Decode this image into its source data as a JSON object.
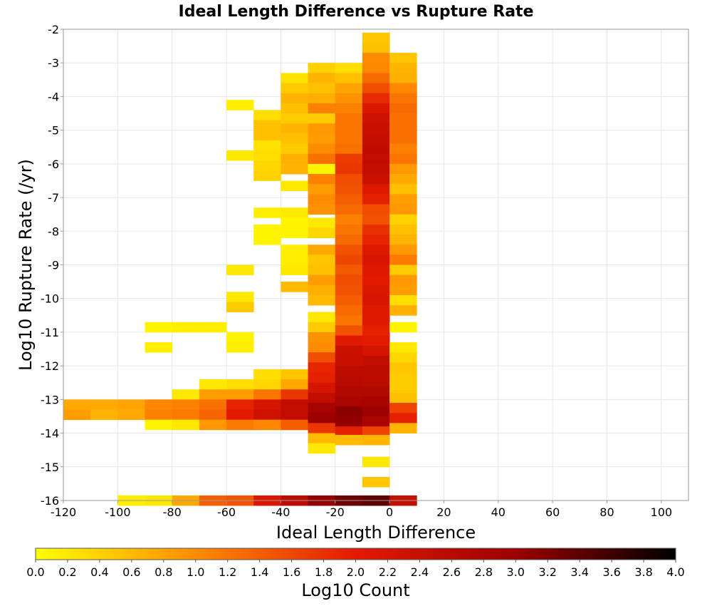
{
  "chart_data": {
    "type": "heatmap",
    "title": "Ideal Length Difference vs Rupture Rate",
    "xlabel": "Ideal Length Difference",
    "ylabel": "Log10 Rupture Rate (/yr)",
    "xlim": [
      -120,
      110
    ],
    "ylim": [
      -16,
      -2
    ],
    "x_ticks": [
      "-120",
      "-100",
      "-80",
      "-60",
      "-40",
      "-20",
      "0",
      "20",
      "40",
      "60",
      "80",
      "100"
    ],
    "y_ticks": [
      "-2",
      "-3",
      "-4",
      "-5",
      "-6",
      "-7",
      "-8",
      "-9",
      "-10",
      "-11",
      "-12",
      "-13",
      "-14",
      "-15",
      "-16"
    ],
    "grid": true,
    "bin_width_x": 10,
    "bin_height_y": 0.3,
    "colorbar": {
      "label": "Log10 Count",
      "range": [
        0,
        4
      ],
      "ticks": [
        "0.0",
        "0.2",
        "0.4",
        "0.6",
        "0.8",
        "1.0",
        "1.2",
        "1.4",
        "1.6",
        "1.8",
        "2.0",
        "2.2",
        "2.4",
        "2.6",
        "2.8",
        "3.0",
        "3.2",
        "3.4",
        "3.6",
        "3.8",
        "4.0"
      ],
      "colors": [
        "#ffff00",
        "#ff8c00",
        "#e31a00",
        "#9c0000",
        "#000000"
      ],
      "placement": "bottom"
    },
    "bins_by_column": [
      {
        "x": -120,
        "cells": [
          [
            -13.15,
            0.75
          ],
          [
            -13.45,
            0.85
          ]
        ]
      },
      {
        "x": -110,
        "cells": [
          [
            -13.15,
            0.75
          ],
          [
            -13.45,
            0.65
          ]
        ]
      },
      {
        "x": -100,
        "cells": [
          [
            -13.15,
            0.8
          ],
          [
            -13.45,
            0.75
          ],
          [
            -16.0,
            0.15
          ]
        ]
      },
      {
        "x": -90,
        "cells": [
          [
            -10.85,
            0.1
          ],
          [
            -11.45,
            0.15
          ],
          [
            -13.15,
            1.05
          ],
          [
            -13.45,
            1.1
          ],
          [
            -13.75,
            0.1
          ],
          [
            -16.0,
            0.2
          ]
        ]
      },
      {
        "x": -80,
        "cells": [
          [
            -10.85,
            0.15
          ],
          [
            -12.85,
            0.2
          ],
          [
            -13.15,
            1.1
          ],
          [
            -13.45,
            1.15
          ],
          [
            -13.75,
            0.2
          ],
          [
            -16.0,
            0.75
          ]
        ]
      },
      {
        "x": -70,
        "cells": [
          [
            -10.85,
            0.15
          ],
          [
            -12.55,
            0.2
          ],
          [
            -12.85,
            0.85
          ],
          [
            -13.15,
            1.25
          ],
          [
            -13.45,
            1.35
          ],
          [
            -13.75,
            0.9
          ],
          [
            -16.0,
            1.4
          ]
        ]
      },
      {
        "x": -60,
        "cells": [
          [
            -4.25,
            0.15
          ],
          [
            -5.75,
            0.2
          ],
          [
            -9.15,
            0.2
          ],
          [
            -9.95,
            0.2
          ],
          [
            -10.25,
            0.45
          ],
          [
            -11.15,
            0.1
          ],
          [
            -11.45,
            0.15
          ],
          [
            -12.55,
            0.3
          ],
          [
            -12.85,
            0.85
          ],
          [
            -13.15,
            1.9
          ],
          [
            -13.45,
            2.0
          ],
          [
            -13.75,
            1.15
          ],
          [
            -16.0,
            1.5
          ]
        ]
      },
      {
        "x": -50,
        "cells": [
          [
            -4.55,
            0.3
          ],
          [
            -4.85,
            0.55
          ],
          [
            -5.15,
            0.55
          ],
          [
            -5.45,
            0.25
          ],
          [
            -5.75,
            0.3
          ],
          [
            -6.05,
            0.35
          ],
          [
            -6.35,
            0.4
          ],
          [
            -7.45,
            0.15
          ],
          [
            -7.95,
            0.1
          ],
          [
            -8.25,
            0.1
          ],
          [
            -12.25,
            0.3
          ],
          [
            -12.55,
            0.35
          ],
          [
            -12.85,
            1.2
          ],
          [
            -13.15,
            2.2
          ],
          [
            -13.45,
            2.3
          ],
          [
            -13.75,
            1.05
          ],
          [
            -16.0,
            2.1
          ]
        ]
      },
      {
        "x": -40,
        "cells": [
          [
            -3.45,
            0.25
          ],
          [
            -3.75,
            0.45
          ],
          [
            -4.05,
            0.65
          ],
          [
            -4.35,
            0.55
          ],
          [
            -4.65,
            0.45
          ],
          [
            -4.95,
            0.65
          ],
          [
            -5.25,
            0.55
          ],
          [
            -5.55,
            0.45
          ],
          [
            -5.85,
            0.7
          ],
          [
            -6.15,
            0.65
          ],
          [
            -6.65,
            0.2
          ],
          [
            -7.45,
            0.2
          ],
          [
            -7.75,
            0.1
          ],
          [
            -8.05,
            0.1
          ],
          [
            -8.55,
            0.15
          ],
          [
            -8.85,
            0.15
          ],
          [
            -9.15,
            0.2
          ],
          [
            -9.65,
            0.6
          ],
          [
            -12.25,
            0.5
          ],
          [
            -12.55,
            0.75
          ],
          [
            -12.85,
            1.75
          ],
          [
            -13.15,
            2.5
          ],
          [
            -13.45,
            2.5
          ],
          [
            -13.75,
            1.4
          ],
          [
            -16.0,
            2.55
          ]
        ]
      },
      {
        "x": -30,
        "cells": [
          [
            -3.15,
            0.4
          ],
          [
            -3.45,
            0.65
          ],
          [
            -3.75,
            0.55
          ],
          [
            -4.05,
            0.7
          ],
          [
            -4.35,
            1.1
          ],
          [
            -4.65,
            0.45
          ],
          [
            -4.95,
            0.9
          ],
          [
            -5.25,
            0.85
          ],
          [
            -5.55,
            1.0
          ],
          [
            -5.85,
            1.25
          ],
          [
            -6.15,
            0.1
          ],
          [
            -6.45,
            1.1
          ],
          [
            -6.75,
            0.85
          ],
          [
            -7.05,
            1.0
          ],
          [
            -7.35,
            0.95
          ],
          [
            -7.75,
            0.2
          ],
          [
            -8.05,
            0.35
          ],
          [
            -8.55,
            0.75
          ],
          [
            -8.85,
            0.5
          ],
          [
            -9.15,
            0.55
          ],
          [
            -9.45,
            0.85
          ],
          [
            -9.75,
            0.7
          ],
          [
            -10.05,
            0.6
          ],
          [
            -10.55,
            0.2
          ],
          [
            -10.85,
            0.45
          ],
          [
            -11.15,
            0.95
          ],
          [
            -11.45,
            1.0
          ],
          [
            -11.75,
            1.55
          ],
          [
            -12.05,
            1.9
          ],
          [
            -12.35,
            1.95
          ],
          [
            -12.65,
            2.2
          ],
          [
            -12.95,
            2.5
          ],
          [
            -13.25,
            2.85
          ],
          [
            -13.55,
            3.0
          ],
          [
            -13.85,
            1.75
          ],
          [
            -14.15,
            0.6
          ],
          [
            -14.45,
            0.2
          ],
          [
            -16.0,
            3.05
          ]
        ]
      },
      {
        "x": -20,
        "cells": [
          [
            -3.15,
            0.3
          ],
          [
            -3.45,
            0.55
          ],
          [
            -3.75,
            0.8
          ],
          [
            -4.05,
            0.95
          ],
          [
            -4.35,
            1.1
          ],
          [
            -4.65,
            1.2
          ],
          [
            -4.95,
            1.2
          ],
          [
            -5.25,
            1.2
          ],
          [
            -5.55,
            1.25
          ],
          [
            -5.85,
            1.7
          ],
          [
            -6.15,
            1.75
          ],
          [
            -6.45,
            1.55
          ],
          [
            -6.75,
            1.5
          ],
          [
            -7.05,
            1.4
          ],
          [
            -7.35,
            1.3
          ],
          [
            -7.65,
            1.1
          ],
          [
            -7.95,
            1.2
          ],
          [
            -8.25,
            1.3
          ],
          [
            -8.55,
            1.5
          ],
          [
            -8.85,
            1.6
          ],
          [
            -9.15,
            1.45
          ],
          [
            -9.45,
            1.55
          ],
          [
            -9.75,
            1.5
          ],
          [
            -10.05,
            1.4
          ],
          [
            -10.35,
            1.3
          ],
          [
            -10.65,
            1.2
          ],
          [
            -10.95,
            1.5
          ],
          [
            -11.25,
            2.05
          ],
          [
            -11.55,
            2.35
          ],
          [
            -11.85,
            2.4
          ],
          [
            -12.15,
            2.55
          ],
          [
            -12.45,
            2.6
          ],
          [
            -12.75,
            2.7
          ],
          [
            -13.05,
            2.8
          ],
          [
            -13.35,
            3.1
          ],
          [
            -13.65,
            3.05
          ],
          [
            -13.95,
            1.95
          ],
          [
            -14.2,
            0.6
          ],
          [
            -16.0,
            3.3
          ]
        ]
      },
      {
        "x": -10,
        "cells": [
          [
            -2.25,
            0.5
          ],
          [
            -2.55,
            0.55
          ],
          [
            -2.85,
            1.0
          ],
          [
            -3.15,
            1.05
          ],
          [
            -3.45,
            1.3
          ],
          [
            -3.75,
            1.55
          ],
          [
            -4.05,
            1.85
          ],
          [
            -4.35,
            2.1
          ],
          [
            -4.65,
            2.3
          ],
          [
            -4.95,
            2.4
          ],
          [
            -5.25,
            2.45
          ],
          [
            -5.55,
            2.5
          ],
          [
            -5.85,
            2.5
          ],
          [
            -6.15,
            2.45
          ],
          [
            -6.45,
            2.35
          ],
          [
            -6.75,
            2.05
          ],
          [
            -7.05,
            1.95
          ],
          [
            -7.35,
            1.55
          ],
          [
            -7.65,
            1.5
          ],
          [
            -7.95,
            1.8
          ],
          [
            -8.25,
            1.9
          ],
          [
            -8.55,
            2.05
          ],
          [
            -8.85,
            2.15
          ],
          [
            -9.15,
            2.05
          ],
          [
            -9.45,
            2.0
          ],
          [
            -9.75,
            2.1
          ],
          [
            -10.05,
            2.15
          ],
          [
            -10.35,
            2.05
          ],
          [
            -10.65,
            2.05
          ],
          [
            -10.95,
            1.95
          ],
          [
            -11.25,
            2.0
          ],
          [
            -11.55,
            2.2
          ],
          [
            -11.85,
            2.5
          ],
          [
            -12.15,
            2.55
          ],
          [
            -12.45,
            2.55
          ],
          [
            -12.75,
            2.7
          ],
          [
            -13.05,
            2.85
          ],
          [
            -13.35,
            2.95
          ],
          [
            -13.65,
            2.8
          ],
          [
            -13.95,
            1.65
          ],
          [
            -14.2,
            0.65
          ],
          [
            -14.85,
            0.2
          ],
          [
            -15.45,
            0.5
          ],
          [
            -16.0,
            3.4
          ]
        ]
      },
      {
        "x": 0,
        "cells": [
          [
            -2.85,
            0.5
          ],
          [
            -3.15,
            0.65
          ],
          [
            -3.45,
            0.7
          ],
          [
            -3.75,
            1.05
          ],
          [
            -4.05,
            1.2
          ],
          [
            -4.35,
            1.3
          ],
          [
            -4.65,
            1.25
          ],
          [
            -4.95,
            1.25
          ],
          [
            -5.25,
            1.25
          ],
          [
            -5.55,
            1.1
          ],
          [
            -5.85,
            1.2
          ],
          [
            -6.15,
            0.9
          ],
          [
            -6.45,
            0.75
          ],
          [
            -6.75,
            0.55
          ],
          [
            -7.05,
            0.85
          ],
          [
            -7.35,
            0.9
          ],
          [
            -7.65,
            0.4
          ],
          [
            -7.95,
            0.55
          ],
          [
            -8.25,
            0.65
          ],
          [
            -8.55,
            0.9
          ],
          [
            -8.85,
            1.15
          ],
          [
            -9.15,
            0.45
          ],
          [
            -9.45,
            0.9
          ],
          [
            -9.75,
            0.85
          ],
          [
            -10.05,
            0.3
          ],
          [
            -10.35,
            0.7
          ],
          [
            -10.85,
            0.1
          ],
          [
            -11.45,
            0.2
          ],
          [
            -11.75,
            0.35
          ],
          [
            -12.05,
            0.5
          ],
          [
            -12.35,
            0.45
          ],
          [
            -12.65,
            0.45
          ],
          [
            -12.95,
            0.55
          ],
          [
            -13.25,
            1.65
          ],
          [
            -13.55,
            1.95
          ],
          [
            -13.85,
            0.65
          ],
          [
            -16.0,
            2.45
          ]
        ]
      }
    ]
  }
}
